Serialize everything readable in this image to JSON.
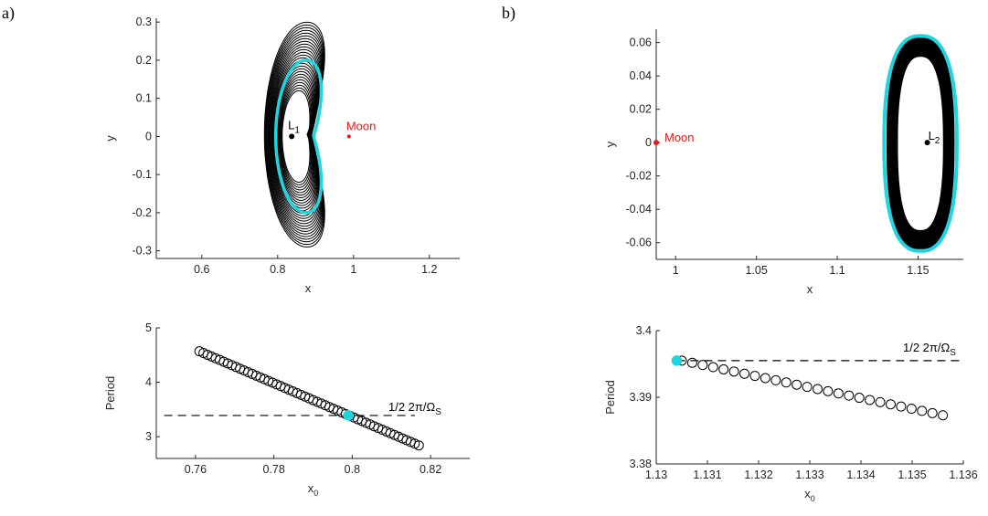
{
  "panel_labels": [
    "a)",
    "b)"
  ],
  "colors": {
    "orbit": "#000000",
    "highlight": "#20d5e0",
    "moon": "#e0191b",
    "axis": "#262626"
  },
  "chart_data": [
    {
      "id": "a_top",
      "type": "line",
      "xlabel": "x",
      "ylabel": "y",
      "xlim": [
        0.48,
        1.28
      ],
      "ylim": [
        -0.32,
        0.31
      ],
      "xticks": [
        0.6,
        0.8,
        1,
        1.2
      ],
      "xtick_labels": [
        "0.6",
        "0.8",
        "1",
        "1.2"
      ],
      "yticks": [
        -0.3,
        -0.2,
        -0.1,
        0,
        0.1,
        0.2,
        0.3
      ],
      "ytick_labels": [
        "-0.3",
        "-0.2",
        "-0.1",
        "0",
        "0.1",
        "0.2",
        "0.3"
      ],
      "family": {
        "type": "halo-orbits",
        "center": [
          0.837,
          0
        ],
        "outer_extent": {
          "x": [
            0.765,
            0.99
          ],
          "y": [
            -0.29,
            0.3
          ]
        },
        "inner_extent": {
          "x": [
            0.812,
            0.9
          ],
          "y": [
            -0.12,
            0.12
          ]
        },
        "count": 26
      },
      "highlighted_orbit": {
        "x": [
          0.795,
          0.955
        ],
        "y": [
          -0.2,
          0.2
        ]
      },
      "points": [
        {
          "name": "L1",
          "x": 0.837,
          "y": 0,
          "label": "L",
          "sub": "1"
        },
        {
          "name": "Moon",
          "x": 0.988,
          "y": 0,
          "label": "Moon"
        }
      ]
    },
    {
      "id": "a_bottom",
      "type": "scatter",
      "xlabel": "x",
      "xlabel_sub": "0",
      "ylabel": "Period",
      "xlim": [
        0.75,
        0.83
      ],
      "ylim": [
        2.6,
        5
      ],
      "xticks": [
        0.76,
        0.78,
        0.8,
        0.82
      ],
      "xtick_labels": [
        "0.76",
        "0.78",
        "0.8",
        "0.82"
      ],
      "yticks": [
        3,
        4,
        5
      ],
      "ytick_labels": [
        "3",
        "4",
        "5"
      ],
      "series": [
        {
          "x_start": 0.761,
          "x_end": 0.817,
          "y_start": 4.57,
          "y_end": 2.84,
          "count": 55
        }
      ],
      "reference_line": {
        "y": 3.39,
        "x_range": [
          0.752,
          0.816
        ],
        "label": "1/2 2π/Ω",
        "label_sub": "S"
      },
      "highlight": {
        "x": 0.799,
        "y": 3.39
      }
    },
    {
      "id": "b_top",
      "type": "line",
      "xlabel": "x",
      "ylabel": "y",
      "xlim": [
        0.988,
        1.178
      ],
      "ylim": [
        -0.07,
        0.068
      ],
      "xticks": [
        1,
        1.05,
        1.1,
        1.15
      ],
      "xtick_labels": [
        "1",
        "1.05",
        "1.1",
        "1.15"
      ],
      "yticks": [
        -0.06,
        -0.04,
        -0.02,
        0,
        0.02,
        0.04,
        0.06
      ],
      "ytick_labels": [
        "-0.06",
        "-0.04",
        "-0.02",
        "0",
        "0.02",
        "0.04",
        "0.06"
      ],
      "family": {
        "type": "lyapunov-orbits",
        "outer_extent": {
          "x": [
            1.131,
            1.172
          ],
          "y": [
            -0.065,
            0.064
          ]
        },
        "inner_extent": {
          "x": [
            1.137,
            1.166
          ],
          "y": [
            -0.053,
            0.052
          ]
        },
        "count": 14
      },
      "highlighted_orbit": {
        "x": [
          1.129,
          1.174
        ],
        "y": [
          -0.065,
          0.064
        ]
      },
      "points": [
        {
          "name": "L2",
          "x": 1.1557,
          "y": 0,
          "label": "L",
          "sub": "2"
        },
        {
          "name": "Moon",
          "x": 0.988,
          "y": 0,
          "label": "Moon"
        }
      ]
    },
    {
      "id": "b_bottom",
      "type": "scatter",
      "xlabel": "x",
      "xlabel_sub": "0",
      "ylabel": "Period",
      "xlim": [
        1.13,
        1.136
      ],
      "ylim": [
        3.38,
        3.4
      ],
      "xticks": [
        1.13,
        1.131,
        1.132,
        1.133,
        1.134,
        1.135,
        1.136
      ],
      "xtick_labels": [
        "1.13",
        "1.131",
        "1.132",
        "1.133",
        "1.134",
        "1.135",
        "1.136"
      ],
      "yticks": [
        3.38,
        3.39,
        3.4
      ],
      "ytick_labels": [
        "3.38",
        "3.39",
        "3.4"
      ],
      "series": [
        {
          "x_start": 1.1305,
          "x_end": 1.1356,
          "y_start": 3.3955,
          "y_end": 3.3873,
          "count": 26
        }
      ],
      "reference_line": {
        "y": 3.3955,
        "x_range": [
          1.1304,
          1.136
        ],
        "label": "1/2 2π/Ω",
        "label_sub": "S"
      },
      "highlight": {
        "x": 1.1304,
        "y": 3.3955
      }
    }
  ]
}
